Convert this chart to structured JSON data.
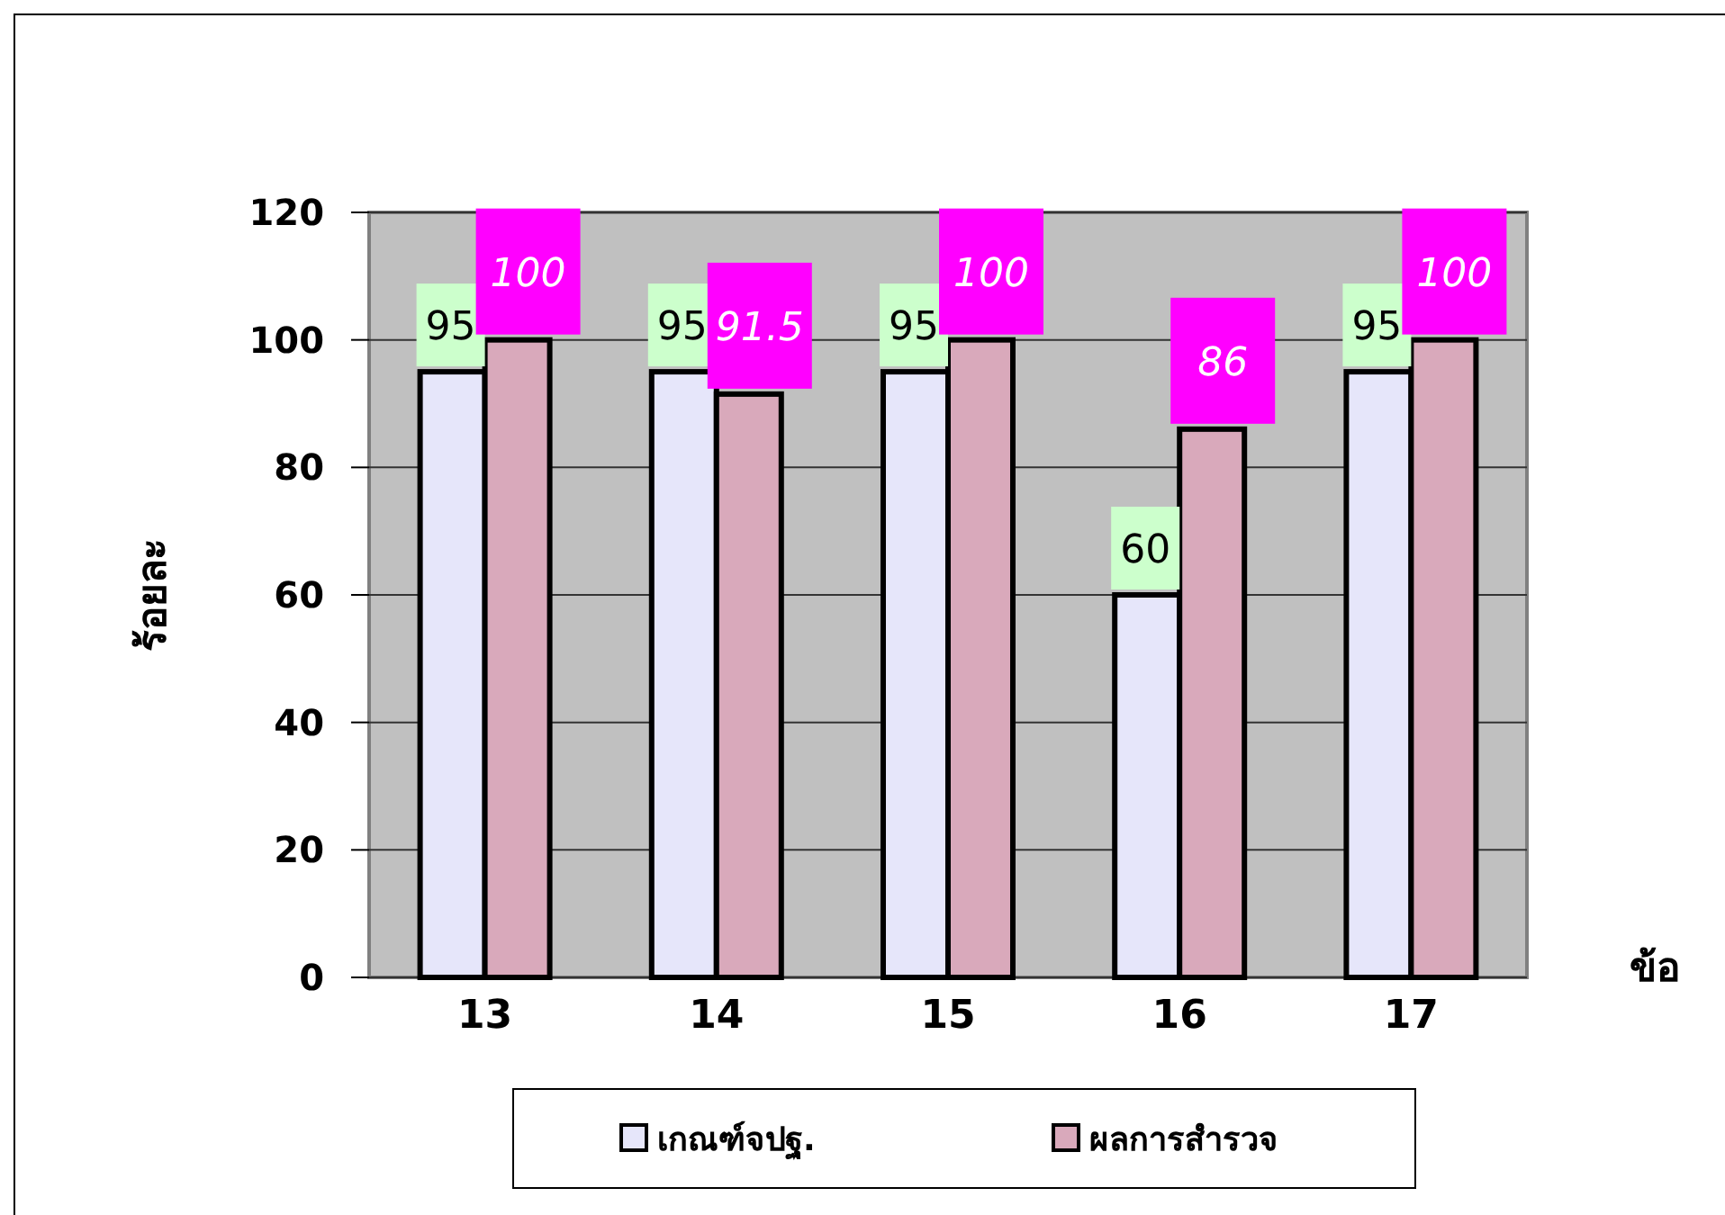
{
  "chart_data": {
    "type": "bar",
    "ylabel": "ร้อยละ",
    "xlabel": "ข้อ",
    "categories": [
      "13",
      "14",
      "15",
      "16",
      "17"
    ],
    "series": [
      {
        "name": "เกณฑ์จปฐ.",
        "color": "#e6e6fa",
        "values": [
          95,
          95,
          95,
          60,
          95
        ]
      },
      {
        "name": "ผลการสำรวจ",
        "color": "#d9a9bb",
        "values": [
          100,
          91.5,
          100,
          86,
          100
        ]
      }
    ],
    "ylim": [
      0,
      120
    ],
    "yticks": [
      0,
      20,
      40,
      60,
      80,
      100,
      120
    ],
    "grid": "y",
    "legend": "bottom",
    "data_labels": true
  }
}
